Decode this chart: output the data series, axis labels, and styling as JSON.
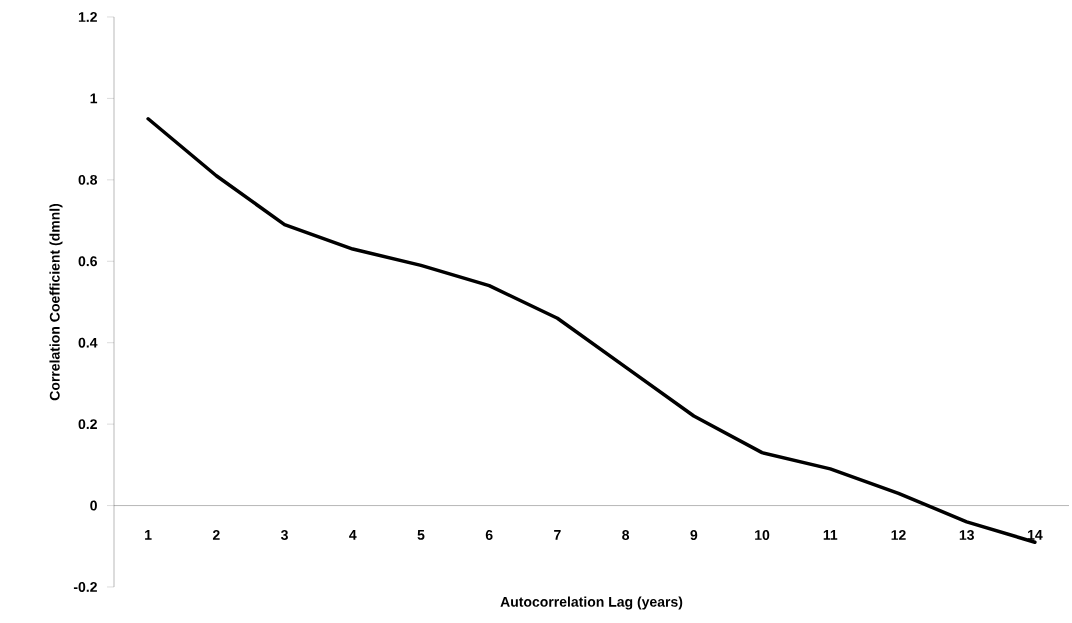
{
  "chart_data": {
    "type": "line",
    "xlabel": "Autocorrelation Lag (years)",
    "ylabel": "Correlation Coefficient (dmnl)",
    "categories": [
      "1",
      "2",
      "3",
      "4",
      "5",
      "6",
      "7",
      "8",
      "9",
      "10",
      "11",
      "12",
      "13",
      "14"
    ],
    "series": [
      {
        "color": "#000000",
        "values": [
          0.95,
          0.81,
          0.69,
          0.63,
          0.59,
          0.54,
          0.46,
          0.34,
          0.22,
          0.13,
          0.09,
          0.03,
          -0.04,
          -0.09
        ]
      }
    ],
    "ylim": [
      -0.2,
      1.2
    ],
    "yticks": [
      -0.2,
      0,
      0.2,
      0.4,
      0.6,
      0.8,
      1,
      1.2
    ],
    "grid": false,
    "legend": false,
    "marker": "none",
    "line_style": "solid"
  }
}
